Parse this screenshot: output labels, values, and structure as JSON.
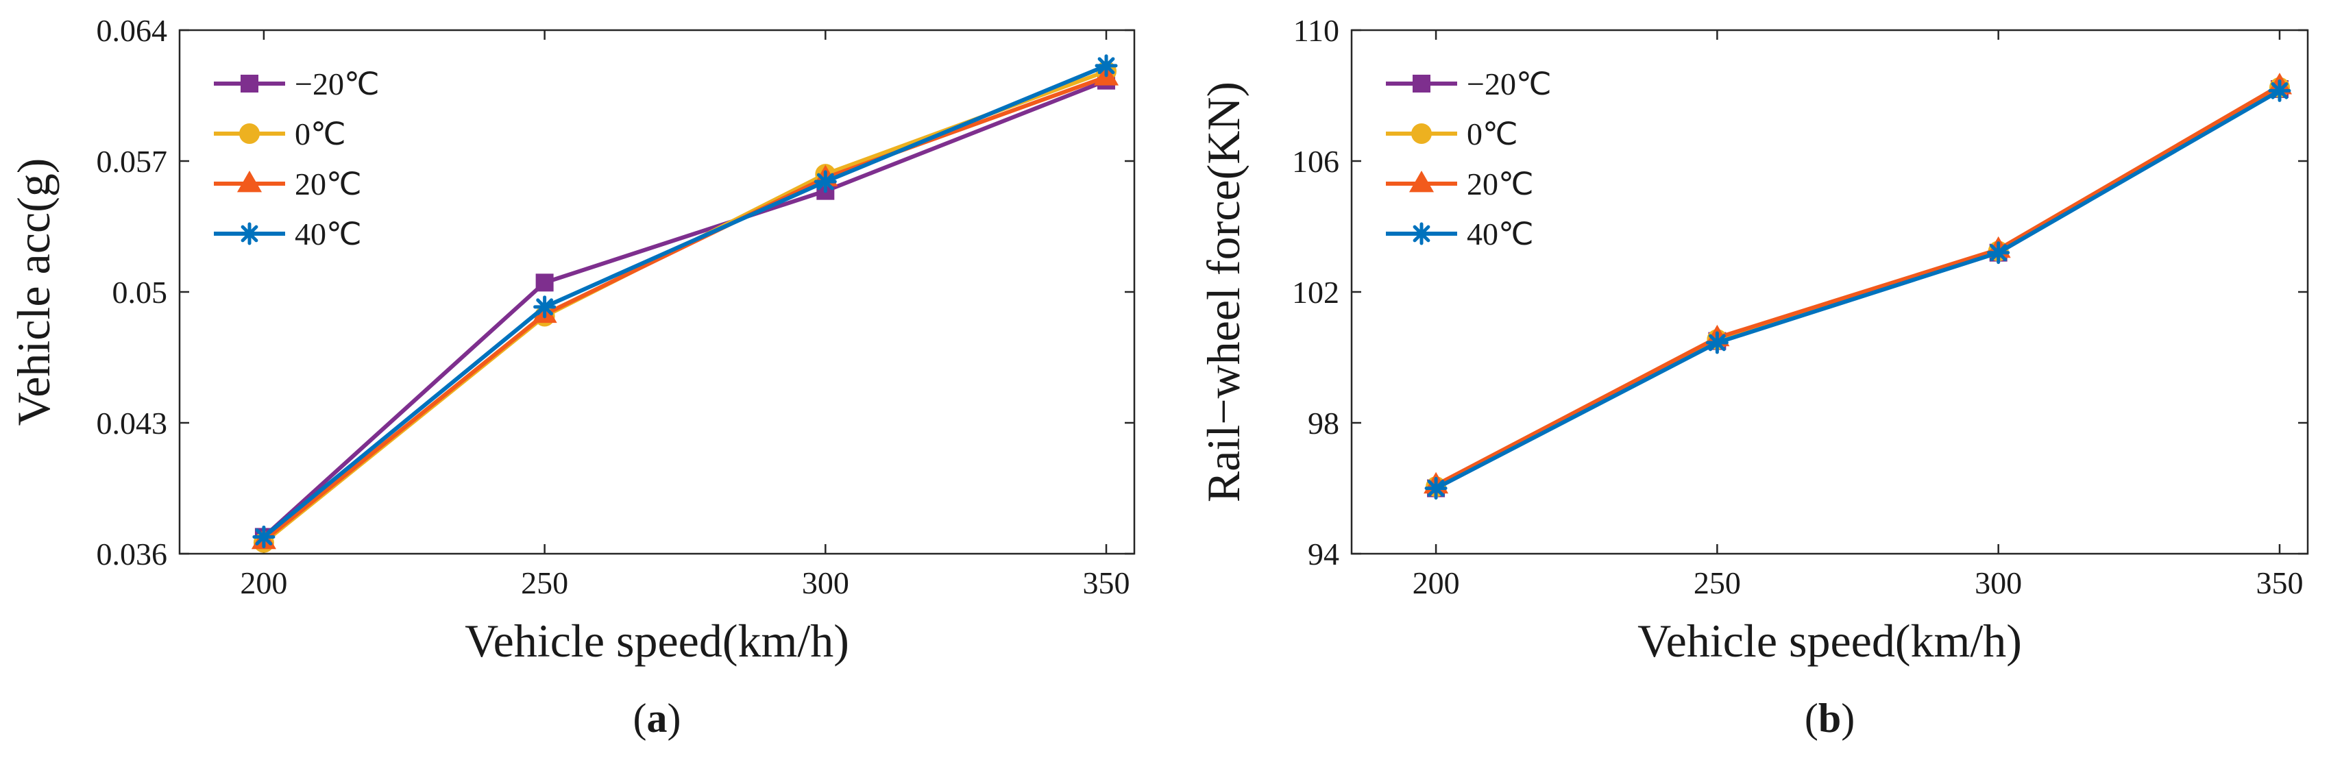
{
  "colors": {
    "neg20": "#7E2F8E",
    "zero": "#EDB120",
    "pos20": "#F25A1C",
    "pos40": "#0072BD",
    "axis": "#262626"
  },
  "chart_data": [
    {
      "type": "line",
      "panel": "a",
      "panel_label": "(a)",
      "panel_open": "(",
      "panel_letter": "a",
      "panel_close": ")",
      "xlabel": "Vehicle speed(km/h)",
      "ylabel": "Vehicle acc(g)",
      "x": [
        200,
        250,
        300,
        350
      ],
      "xlim": [
        185,
        355
      ],
      "ylim": [
        0.036,
        0.064
      ],
      "xticks": [
        "200",
        "250",
        "300",
        "350"
      ],
      "yticks": [
        "0.036",
        "0.043",
        "0.05",
        "0.057",
        "0.064"
      ],
      "ytick_values": [
        0.036,
        0.043,
        0.05,
        0.057,
        0.064
      ],
      "legend_position": "top-left",
      "series": [
        {
          "name": "−20℃",
          "color_key": "neg20",
          "marker": "square",
          "values": [
            0.0369,
            0.0505,
            0.0554,
            0.0613
          ]
        },
        {
          "name": "0℃",
          "color_key": "zero",
          "marker": "circle",
          "values": [
            0.0366,
            0.0487,
            0.0563,
            0.0618
          ]
        },
        {
          "name": "20℃",
          "color_key": "pos20",
          "marker": "triangle",
          "values": [
            0.0367,
            0.0488,
            0.0561,
            0.0615
          ]
        },
        {
          "name": "40℃",
          "color_key": "pos40",
          "marker": "star",
          "values": [
            0.0369,
            0.0492,
            0.0559,
            0.0621
          ]
        }
      ]
    },
    {
      "type": "line",
      "panel": "b",
      "panel_label": "(b)",
      "panel_open": "(",
      "panel_letter": "b",
      "panel_close": ")",
      "xlabel": "Vehicle speed(km/h)",
      "ylabel": "Rail−wheel force(KN)",
      "x": [
        200,
        250,
        300,
        350
      ],
      "xlim": [
        185,
        355
      ],
      "ylim": [
        94,
        110
      ],
      "xticks": [
        "200",
        "250",
        "300",
        "350"
      ],
      "yticks": [
        "94",
        "98",
        "102",
        "106",
        "110"
      ],
      "ytick_values": [
        94,
        98,
        102,
        106,
        110
      ],
      "legend_position": "top-left",
      "series": [
        {
          "name": "−20℃",
          "color_key": "neg20",
          "marker": "square",
          "values": [
            96.0,
            100.5,
            103.2,
            108.2
          ]
        },
        {
          "name": "0℃",
          "color_key": "zero",
          "marker": "circle",
          "values": [
            96.05,
            100.55,
            103.25,
            108.25
          ]
        },
        {
          "name": "20℃",
          "color_key": "pos20",
          "marker": "triangle",
          "values": [
            96.1,
            100.6,
            103.3,
            108.3
          ]
        },
        {
          "name": "40℃",
          "color_key": "pos40",
          "marker": "star",
          "values": [
            96.0,
            100.45,
            103.2,
            108.15
          ]
        }
      ]
    }
  ]
}
